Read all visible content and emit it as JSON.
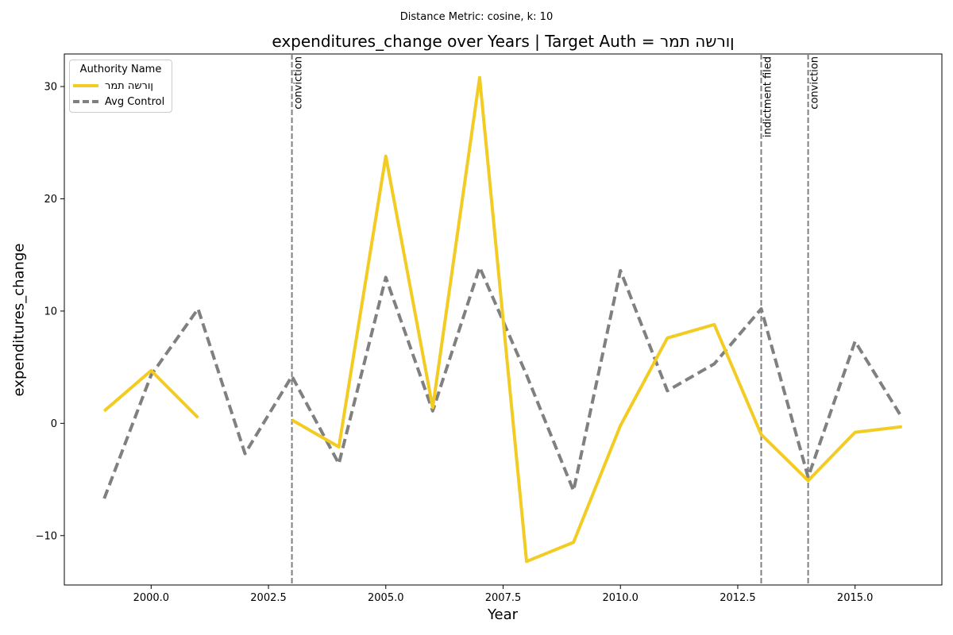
{
  "suptitle": "Distance Metric: cosine, k: 10",
  "chart_data": {
    "type": "line",
    "title": "expenditures_change over Years | Target Auth = ןורשה תמר",
    "xlabel": "Year",
    "ylabel": "expenditures_change",
    "xlim": [
      1998.15,
      2016.85
    ],
    "ylim": [
      -14.4,
      32.9
    ],
    "xticks": [
      2000.0,
      2002.5,
      2005.0,
      2007.5,
      2010.0,
      2012.5,
      2015.0
    ],
    "xtick_labels": [
      "2000.0",
      "2002.5",
      "2005.0",
      "2007.5",
      "2010.0",
      "2012.5",
      "2015.0"
    ],
    "yticks": [
      -10,
      0,
      10,
      20,
      30
    ],
    "ytick_labels": [
      "−10",
      "0",
      "10",
      "20",
      "30"
    ],
    "grid": false,
    "legend": {
      "title": "Authority Name",
      "placement": "upper-left"
    },
    "series": [
      {
        "name": "ןורשה תמר",
        "color": "#f2cc22",
        "style": "solid",
        "points": [
          [
            [
              1999,
              1.1
            ],
            [
              2000,
              4.7
            ],
            [
              2001,
              0.5
            ]
          ],
          [
            [
              2003,
              0.3
            ],
            [
              2004,
              -2.1
            ],
            [
              2005,
              23.8
            ],
            [
              2006,
              1.4
            ],
            [
              2007,
              30.8
            ],
            [
              2008,
              -12.3
            ],
            [
              2009,
              -10.6
            ],
            [
              2010,
              -0.2
            ],
            [
              2011,
              7.6
            ],
            [
              2012,
              8.8
            ],
            [
              2013,
              -1.0
            ],
            [
              2014,
              -5.1
            ],
            [
              2015,
              -0.8
            ],
            [
              2016,
              -0.3
            ]
          ]
        ]
      },
      {
        "name": "Avg Control",
        "color": "#808080",
        "style": "dashed",
        "points": [
          [
            [
              1999,
              -6.7
            ],
            [
              2000,
              4.3
            ],
            [
              2001,
              10.2
            ],
            [
              2002,
              -2.7
            ],
            [
              2003,
              4.2
            ],
            [
              2004,
              -3.6
            ],
            [
              2005,
              13.0
            ],
            [
              2006,
              1.1
            ],
            [
              2007,
              13.9
            ],
            [
              2008,
              4.3
            ],
            [
              2009,
              -6.0
            ],
            [
              2010,
              13.6
            ],
            [
              2011,
              2.9
            ],
            [
              2012,
              5.3
            ],
            [
              2013,
              10.2
            ],
            [
              2014,
              -4.8
            ],
            [
              2015,
              7.3
            ],
            [
              2016,
              0.5
            ]
          ]
        ]
      }
    ],
    "events": [
      {
        "x": 2003,
        "label": "conviction"
      },
      {
        "x": 2013,
        "label": "indictment filed"
      },
      {
        "x": 2014,
        "label": "conviction"
      }
    ]
  }
}
